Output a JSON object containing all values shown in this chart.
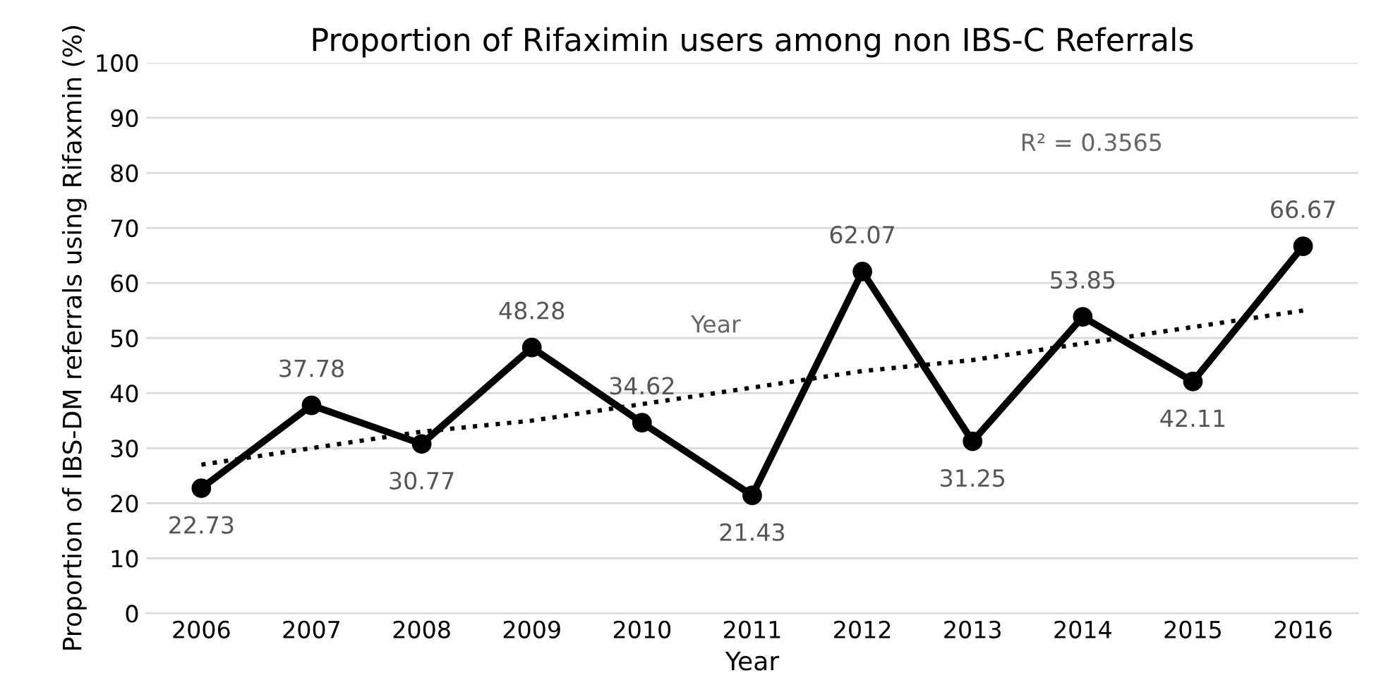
{
  "chart_data": {
    "type": "line",
    "title": "Proportion of Rifaximin users among non IBS-C Referrals",
    "xlabel": "Year",
    "ylabel": "Proportion of IBS-DM referrals using Rifaxmin (%)",
    "categories": [
      "2006",
      "2007",
      "2008",
      "2009",
      "2010",
      "2011",
      "2012",
      "2013",
      "2014",
      "2015",
      "2016"
    ],
    "series": [
      {
        "color": "#000000",
        "values": [
          22.73,
          37.78,
          30.77,
          48.28,
          34.62,
          21.43,
          62.07,
          31.25,
          53.85,
          42.11,
          66.67
        ],
        "marker": "circle",
        "line_style": "solid",
        "data_labels": true
      },
      {
        "type": "line",
        "color": "#000000",
        "values": [
          27,
          30,
          33,
          35,
          38,
          41,
          44,
          46,
          49,
          52,
          55
        ],
        "marker": "none",
        "line_style": "dotted"
      }
    ],
    "ylim": [
      0,
      100
    ],
    "yticks": [
      0,
      10,
      20,
      30,
      40,
      50,
      60,
      70,
      80,
      90,
      100
    ],
    "grid": "y",
    "legend": false,
    "annotations": [
      "R² = 0.3565",
      "Year"
    ]
  }
}
